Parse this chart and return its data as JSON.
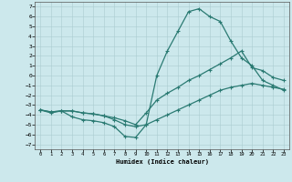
{
  "xlabel": "Humidex (Indice chaleur)",
  "bg_color": "#cce8ec",
  "line_color": "#2a7a72",
  "xlim": [
    -0.5,
    23.5
  ],
  "ylim": [
    -7.5,
    7.5
  ],
  "xticks": [
    0,
    1,
    2,
    3,
    4,
    5,
    6,
    7,
    8,
    9,
    10,
    11,
    12,
    13,
    14,
    15,
    16,
    17,
    18,
    19,
    20,
    21,
    22,
    23
  ],
  "yticks": [
    7,
    6,
    5,
    4,
    3,
    2,
    1,
    0,
    -1,
    -2,
    -3,
    -4,
    -5,
    -6,
    -7
  ],
  "curve1_x": [
    0,
    1,
    2,
    3,
    4,
    5,
    6,
    7,
    8,
    9,
    10,
    11,
    12,
    13,
    14,
    15,
    16,
    17,
    18,
    19,
    20,
    21,
    22,
    23
  ],
  "curve1_y": [
    -3.5,
    -3.8,
    -3.6,
    -4.2,
    -4.5,
    -4.6,
    -4.8,
    -5.2,
    -6.2,
    -6.3,
    -5.0,
    0.0,
    2.5,
    4.5,
    6.5,
    6.8,
    6.0,
    5.5,
    3.5,
    1.8,
    1.0,
    -0.5,
    -1.0,
    -1.5
  ],
  "curve2_x": [
    0,
    1,
    2,
    3,
    4,
    5,
    6,
    7,
    8,
    9,
    10,
    11,
    12,
    13,
    14,
    15,
    16,
    17,
    18,
    19,
    20,
    21,
    22,
    23
  ],
  "curve2_y": [
    -3.5,
    -3.7,
    -3.6,
    -3.6,
    -3.8,
    -3.9,
    -4.1,
    -4.3,
    -4.6,
    -5.0,
    -3.8,
    -2.5,
    -1.8,
    -1.2,
    -0.5,
    0.0,
    0.6,
    1.2,
    1.8,
    2.5,
    0.8,
    0.5,
    -0.2,
    -0.5
  ],
  "curve3_x": [
    0,
    1,
    2,
    3,
    4,
    5,
    6,
    7,
    8,
    9,
    10,
    11,
    12,
    13,
    14,
    15,
    16,
    17,
    18,
    19,
    20,
    21,
    22,
    23
  ],
  "curve3_y": [
    -3.5,
    -3.7,
    -3.6,
    -3.6,
    -3.8,
    -3.9,
    -4.1,
    -4.5,
    -5.0,
    -5.2,
    -5.0,
    -4.5,
    -4.0,
    -3.5,
    -3.0,
    -2.5,
    -2.0,
    -1.5,
    -1.2,
    -1.0,
    -0.8,
    -1.0,
    -1.2,
    -1.4
  ]
}
